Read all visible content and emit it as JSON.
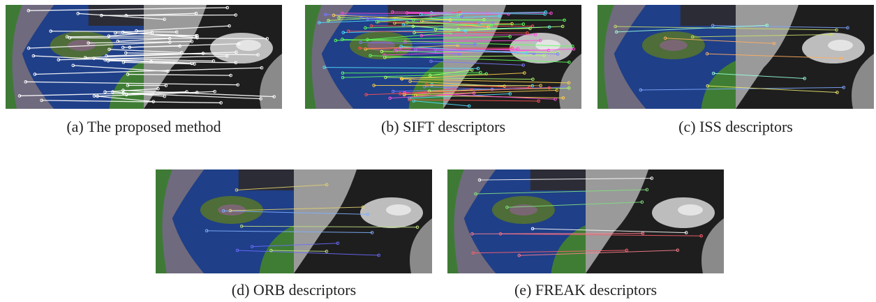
{
  "figure": {
    "panels": [
      {
        "caption": "(a) The proposed method"
      },
      {
        "caption": "(b) SIFT descriptors"
      },
      {
        "caption": "(c) ISS descriptors"
      },
      {
        "caption": "(d) ORB descriptors"
      },
      {
        "caption": "(e) FREAK descriptors"
      }
    ]
  }
}
